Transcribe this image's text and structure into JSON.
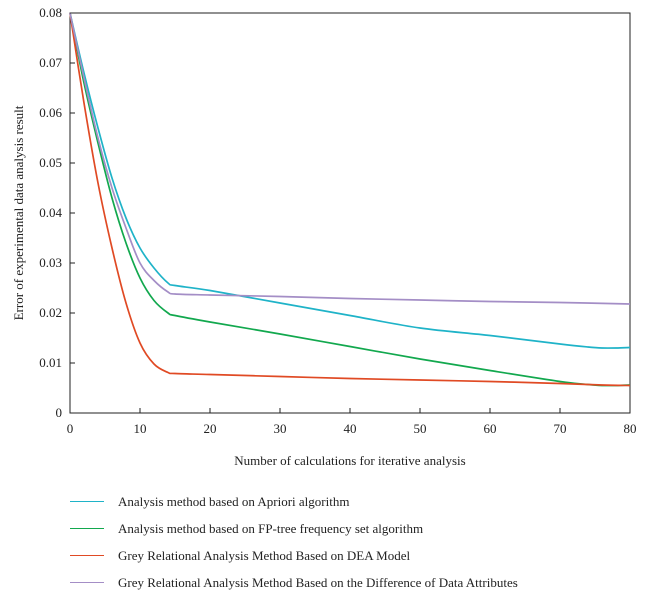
{
  "chart_data": {
    "type": "line",
    "xlabel": "Number of calculations for iterative analysis",
    "ylabel": "Error of experimental data analysis result",
    "xlim": [
      0,
      80
    ],
    "ylim": [
      0,
      0.08
    ],
    "xticks": [
      "0",
      "10",
      "20",
      "30",
      "40",
      "50",
      "60",
      "70",
      "80"
    ],
    "yticks": [
      "0",
      "0.01",
      "0.02",
      "0.03",
      "0.04",
      "0.05",
      "0.06",
      "0.07",
      "0.08"
    ],
    "grid": false,
    "legend_position": "bottom",
    "series": [
      {
        "name": "Analysis method based on Apriori algorithm",
        "color": "#1fb3c8",
        "x": [
          0,
          2,
          4,
          6,
          8,
          10,
          12,
          14,
          15,
          20,
          30,
          40,
          50,
          60,
          70,
          74,
          76,
          78,
          80
        ],
        "y": [
          0.08,
          0.068,
          0.057,
          0.047,
          0.039,
          0.033,
          0.029,
          0.026,
          0.0255,
          0.0245,
          0.022,
          0.0195,
          0.017,
          0.0155,
          0.0138,
          0.0132,
          0.013,
          0.013,
          0.0131
        ]
      },
      {
        "name": "Analysis method based on FP-tree frequency set algorithm",
        "color": "#12a84e",
        "x": [
          0,
          2,
          4,
          6,
          8,
          10,
          12,
          14,
          15,
          20,
          30,
          40,
          50,
          60,
          70,
          74,
          76,
          78,
          80
        ],
        "y": [
          0.08,
          0.066,
          0.054,
          0.043,
          0.034,
          0.027,
          0.0225,
          0.02,
          0.0195,
          0.0182,
          0.0158,
          0.0133,
          0.0108,
          0.0085,
          0.0063,
          0.0057,
          0.0055,
          0.0055,
          0.0056
        ]
      },
      {
        "name": "Grey Relational Analysis Method Based on DEA Model",
        "color": "#e04a24",
        "x": [
          0,
          2,
          4,
          6,
          8,
          10,
          12,
          14,
          15,
          20,
          30,
          40,
          50,
          60,
          70,
          76,
          80
        ],
        "y": [
          0.08,
          0.062,
          0.046,
          0.033,
          0.022,
          0.014,
          0.0098,
          0.0081,
          0.0079,
          0.0077,
          0.0073,
          0.0069,
          0.0066,
          0.0063,
          0.0059,
          0.0056,
          0.0055
        ]
      },
      {
        "name": "Grey Relational Analysis Method Based on the Difference of Data Attributes",
        "color": "#a48ec6",
        "x": [
          0,
          2,
          4,
          6,
          8,
          10,
          12,
          14,
          15,
          20,
          30,
          40,
          50,
          60,
          70,
          80
        ],
        "y": [
          0.08,
          0.067,
          0.055,
          0.045,
          0.037,
          0.03,
          0.0265,
          0.0242,
          0.0238,
          0.0236,
          0.0233,
          0.0229,
          0.0226,
          0.0223,
          0.0221,
          0.0218
        ]
      }
    ]
  }
}
